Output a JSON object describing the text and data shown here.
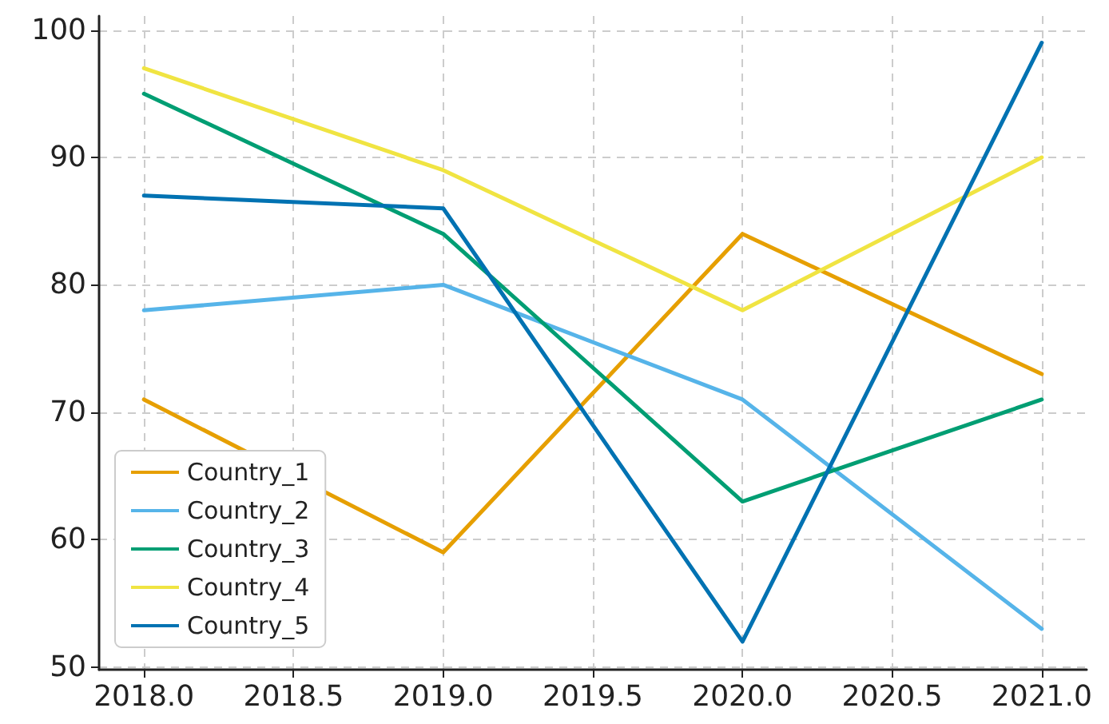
{
  "chart_data": {
    "type": "line",
    "x": [
      2018,
      2019,
      2020,
      2021
    ],
    "series": [
      {
        "name": "Country_1",
        "color": "#e69f00",
        "values": [
          71,
          59,
          84,
          73
        ]
      },
      {
        "name": "Country_2",
        "color": "#56b4e9",
        "values": [
          78,
          80,
          71,
          53
        ]
      },
      {
        "name": "Country_3",
        "color": "#009e73",
        "values": [
          95,
          84,
          63,
          71
        ]
      },
      {
        "name": "Country_4",
        "color": "#f0e442",
        "values": [
          97,
          89,
          78,
          90
        ]
      },
      {
        "name": "Country_5",
        "color": "#0072b2",
        "values": [
          87,
          86,
          52,
          99
        ]
      }
    ],
    "xlim": [
      2017.85,
      2021.15
    ],
    "xticks": [
      {
        "value": 2018,
        "label": "2018.0"
      },
      {
        "value": 2018.5,
        "label": "2018.5"
      },
      {
        "value": 2019,
        "label": "2019.0"
      },
      {
        "value": 2019.5,
        "label": "2019.5"
      },
      {
        "value": 2020,
        "label": "2020.0"
      },
      {
        "value": 2020.5,
        "label": "2020.5"
      },
      {
        "value": 2021,
        "label": "2021.0"
      }
    ],
    "ylim": [
      49.8,
      101.1
    ],
    "yticks": [
      50,
      60,
      70,
      80,
      90,
      100
    ],
    "grid": true,
    "legend": "bottom left",
    "marker": "none",
    "line_style": "solid"
  }
}
